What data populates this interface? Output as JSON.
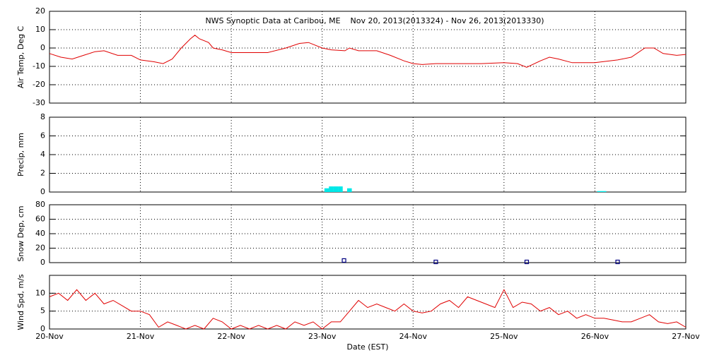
{
  "chart_data": [
    {
      "type": "line",
      "title": "NWS Synoptic Data at Caribou, ME    Nov 20, 2013(2013324) - Nov 26, 2013(2013330)",
      "ylabel": "Air Temp, Deg C",
      "color": "#e00000",
      "grid": true,
      "xlim": [
        0,
        7
      ],
      "xticks": [
        0,
        1,
        2,
        3,
        4,
        5,
        6,
        7
      ],
      "ylim": [
        -30,
        20
      ],
      "yticks": [
        -30,
        -20,
        -10,
        0,
        10,
        20
      ],
      "x": [
        0,
        0.125,
        0.25,
        0.375,
        0.5,
        0.6,
        0.75,
        0.9,
        1.0,
        1.15,
        1.25,
        1.35,
        1.45,
        1.55,
        1.6,
        1.65,
        1.75,
        1.8,
        1.9,
        2.0,
        2.2,
        2.4,
        2.6,
        2.75,
        2.85,
        3.0,
        3.1,
        3.25,
        3.3,
        3.4,
        3.6,
        3.75,
        3.9,
        4.0,
        4.1,
        4.25,
        4.5,
        4.75,
        5.0,
        5.15,
        5.25,
        5.4,
        5.5,
        5.6,
        5.75,
        6.0,
        6.25,
        6.4,
        6.55,
        6.65,
        6.75,
        6.9,
        7.0
      ],
      "values": [
        -3,
        -5,
        -6,
        -4,
        -2,
        -1.5,
        -4,
        -4,
        -6.5,
        -7.5,
        -8.5,
        -6,
        0,
        5,
        7,
        5,
        3,
        0,
        -1,
        -2.5,
        -2.5,
        -2.5,
        0,
        2.5,
        3,
        0,
        -1,
        -1.5,
        0,
        -1.5,
        -1.5,
        -4,
        -7,
        -8.5,
        -9,
        -8.5,
        -8.5,
        -8.5,
        -8,
        -8.5,
        -10.5,
        -7,
        -5,
        -6,
        -8,
        -8,
        -6.5,
        -5,
        0,
        0,
        -3,
        -4,
        -3.5
      ]
    },
    {
      "type": "bar",
      "ylabel": "Precip, mm",
      "color": "#00e8e8",
      "grid": true,
      "xlim": [
        0,
        7
      ],
      "xticks": [
        0,
        1,
        2,
        3,
        4,
        5,
        6,
        7
      ],
      "ylim": [
        0,
        8
      ],
      "yticks": [
        0,
        2,
        4,
        6,
        8
      ],
      "x": [
        3.05,
        3.1,
        3.15,
        3.2,
        3.3,
        6.05,
        6.1
      ],
      "values": [
        0.4,
        0.6,
        0.6,
        0.6,
        0.4,
        0.1,
        0.1
      ]
    },
    {
      "type": "scatter",
      "ylabel": "Snow Dep, cm",
      "color": "#000080",
      "grid": true,
      "xlim": [
        0,
        7
      ],
      "xticks": [
        0,
        1,
        2,
        3,
        4,
        5,
        6,
        7
      ],
      "ylim": [
        0,
        80
      ],
      "yticks": [
        0,
        20,
        40,
        60,
        80
      ],
      "x": [
        3.24,
        4.25,
        5.25,
        6.25
      ],
      "values": [
        3,
        1,
        1,
        1
      ]
    },
    {
      "type": "line",
      "ylabel": "Wind Spd, m/s",
      "xlabel": "Date (EST)",
      "color": "#e00000",
      "grid": true,
      "xlim": [
        0,
        7
      ],
      "xticks": [
        {
          "value": 0,
          "label": "20-Nov"
        },
        {
          "value": 1,
          "label": "21-Nov"
        },
        {
          "value": 2,
          "label": "22-Nov"
        },
        {
          "value": 3,
          "label": "23-Nov"
        },
        {
          "value": 4,
          "label": "24-Nov"
        },
        {
          "value": 5,
          "label": "25-Nov"
        },
        {
          "value": 6,
          "label": "26-Nov"
        },
        {
          "value": 7,
          "label": "27-Nov"
        }
      ],
      "ylim": [
        0,
        15
      ],
      "yticks": [
        0,
        5,
        10
      ],
      "x": [
        0,
        0.1,
        0.2,
        0.3,
        0.4,
        0.5,
        0.6,
        0.7,
        0.8,
        0.9,
        1.0,
        1.1,
        1.2,
        1.3,
        1.4,
        1.5,
        1.6,
        1.7,
        1.8,
        1.9,
        2.0,
        2.1,
        2.2,
        2.3,
        2.4,
        2.5,
        2.6,
        2.7,
        2.8,
        2.9,
        3.0,
        3.1,
        3.2,
        3.3,
        3.4,
        3.5,
        3.6,
        3.7,
        3.8,
        3.9,
        4.0,
        4.1,
        4.2,
        4.3,
        4.4,
        4.5,
        4.6,
        4.7,
        4.8,
        4.9,
        5.0,
        5.1,
        5.2,
        5.3,
        5.4,
        5.5,
        5.6,
        5.7,
        5.8,
        5.9,
        6.0,
        6.1,
        6.2,
        6.3,
        6.4,
        6.5,
        6.6,
        6.7,
        6.8,
        6.9,
        7.0
      ],
      "values": [
        9,
        10,
        8,
        11,
        8,
        10,
        7,
        8,
        6.5,
        5,
        5,
        4,
        0.5,
        2,
        1,
        0,
        1,
        0,
        3,
        2,
        0,
        1,
        0,
        1,
        0,
        1,
        0,
        2,
        1,
        2,
        0,
        2,
        2,
        5,
        8,
        6,
        7,
        6,
        5,
        7,
        5,
        4.5,
        5,
        7,
        8,
        6,
        9,
        8,
        7,
        6,
        11,
        6,
        7.5,
        7,
        5,
        6,
        4,
        5,
        3,
        4,
        3,
        3,
        2.5,
        2,
        2,
        3,
        4,
        2,
        1.5,
        2,
        0.5
      ]
    }
  ]
}
